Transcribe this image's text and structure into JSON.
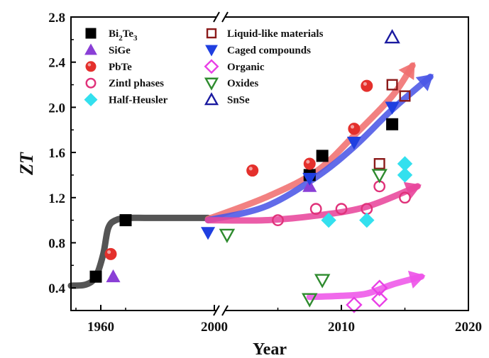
{
  "chart_data": {
    "type": "scatter",
    "xlabel": "Year",
    "ylabel": "ZT",
    "ylim": [
      0.2,
      2.8
    ],
    "y_ticks": [
      "0.4",
      "0.8",
      "1.2",
      "1.6",
      "2.0",
      "2.4",
      "2.8"
    ],
    "x_ticks": [
      "1960",
      "2000",
      "2010",
      "2020"
    ],
    "x_axis_break": "between 1980 and 2000",
    "legend_placement": "top-left",
    "series": [
      {
        "name": "Bi2Te3",
        "label_main": "Bi",
        "sub1": "2",
        "mid": "Te",
        "sub2": "3",
        "marker": "square",
        "color": "#000000",
        "points": [
          [
            1958,
            0.5
          ],
          [
            1970,
            1.0
          ],
          [
            2007.5,
            1.4
          ],
          [
            2008.5,
            1.57
          ],
          [
            2014,
            1.85
          ]
        ]
      },
      {
        "name": "SiGe",
        "marker": "triangle-up",
        "color": "#8a3fd6",
        "points": [
          [
            1965,
            0.5
          ],
          [
            2007.5,
            1.3
          ]
        ]
      },
      {
        "name": "PbTe",
        "marker": "circle",
        "color": "#e4302c",
        "points": [
          [
            1964,
            0.7
          ],
          [
            2003,
            1.44
          ],
          [
            2007.5,
            1.5
          ],
          [
            2011,
            1.81
          ],
          [
            2012,
            2.19
          ]
        ]
      },
      {
        "name": "Zintl phases",
        "marker": "circle-open",
        "color": "#e0327a",
        "points": [
          [
            2005,
            1.0
          ],
          [
            2008,
            1.1
          ],
          [
            2010,
            1.1
          ],
          [
            2012,
            1.1
          ],
          [
            2013,
            1.3
          ],
          [
            2015,
            1.2
          ]
        ]
      },
      {
        "name": "Half-Heusler",
        "marker": "diamond",
        "color": "#33e0ee",
        "points": [
          [
            2009,
            1.0
          ],
          [
            2012,
            1.0
          ],
          [
            2015,
            1.4
          ],
          [
            2015,
            1.5
          ]
        ]
      },
      {
        "name": "Liquid-like materials",
        "marker": "square-open",
        "color": "#8b1a1a",
        "points": [
          [
            2013,
            1.5
          ],
          [
            2014,
            2.2
          ],
          [
            2015,
            2.1
          ]
        ]
      },
      {
        "name": "Caged compounds",
        "marker": "triangle-down",
        "color": "#1f3fe0",
        "points": [
          [
            1999.5,
            0.89
          ],
          [
            2007.5,
            1.37
          ],
          [
            2011,
            1.69
          ],
          [
            2014,
            2.0
          ]
        ]
      },
      {
        "name": "Organic",
        "marker": "diamond-open",
        "color": "#e93fe6",
        "points": [
          [
            2011,
            0.25
          ],
          [
            2013,
            0.3
          ],
          [
            2013,
            0.4
          ]
        ]
      },
      {
        "name": "Oxides",
        "marker": "triangle-down-open",
        "color": "#2e8b2e",
        "points": [
          [
            2001,
            0.87
          ],
          [
            2007.5,
            0.3
          ],
          [
            2008.5,
            0.47
          ],
          [
            2013,
            1.4
          ]
        ]
      },
      {
        "name": "SnSe",
        "marker": "triangle-up-open",
        "color": "#1a1aa0",
        "points": [
          [
            2014,
            2.62
          ]
        ]
      }
    ],
    "trend_curves": [
      {
        "color": "#555555",
        "arrow": false,
        "points": [
          [
            1948,
            0.42
          ],
          [
            1954,
            0.43
          ],
          [
            1958,
            0.5
          ],
          [
            1961,
            0.7
          ],
          [
            1963,
            0.93
          ],
          [
            1966,
            1.0
          ],
          [
            1971,
            1.02
          ],
          [
            1980,
            1.02
          ],
          [
            1999.5,
            1.02
          ]
        ]
      },
      {
        "color": "#f07070",
        "arrow": true,
        "points": [
          [
            1999.5,
            1.01
          ],
          [
            2004,
            1.2
          ],
          [
            2008,
            1.43
          ],
          [
            2011,
            1.75
          ],
          [
            2014,
            2.1
          ],
          [
            2015.6,
            2.37
          ]
        ]
      },
      {
        "color": "#4b57e6",
        "arrow": true,
        "points": [
          [
            1999.5,
            1.0
          ],
          [
            2004,
            1.12
          ],
          [
            2008,
            1.38
          ],
          [
            2011,
            1.65
          ],
          [
            2014,
            1.98
          ],
          [
            2017,
            2.27
          ]
        ]
      },
      {
        "color": "#e8479c",
        "arrow": true,
        "points": [
          [
            1999.5,
            1.0
          ],
          [
            2004,
            1.0
          ],
          [
            2008,
            1.04
          ],
          [
            2012,
            1.12
          ],
          [
            2016,
            1.3
          ]
        ]
      },
      {
        "color": "#ee55e8",
        "arrow": true,
        "points": [
          [
            2007.5,
            0.32
          ],
          [
            2010,
            0.33
          ],
          [
            2012,
            0.35
          ],
          [
            2014,
            0.43
          ],
          [
            2016.3,
            0.5
          ]
        ]
      }
    ]
  }
}
